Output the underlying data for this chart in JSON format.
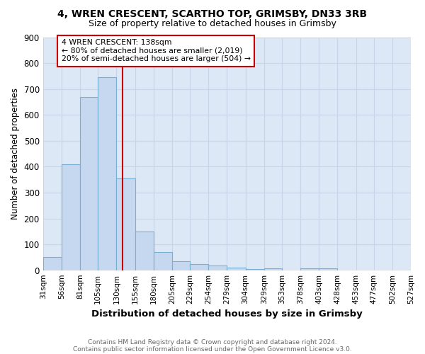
{
  "title1": "4, WREN CRESCENT, SCARTHO TOP, GRIMSBY, DN33 3RB",
  "title2": "Size of property relative to detached houses in Grimsby",
  "xlabel": "Distribution of detached houses by size in Grimsby",
  "ylabel": "Number of detached properties",
  "footer1": "Contains HM Land Registry data © Crown copyright and database right 2024.",
  "footer2": "Contains public sector information licensed under the Open Government Licence v3.0.",
  "bin_edges": [
    31,
    56,
    81,
    105,
    130,
    155,
    180,
    205,
    229,
    254,
    279,
    304,
    329,
    353,
    378,
    403,
    428,
    453,
    477,
    502,
    527
  ],
  "bar_heights": [
    50,
    410,
    670,
    745,
    355,
    150,
    70,
    35,
    25,
    18,
    10,
    5,
    7,
    0,
    8,
    7,
    0,
    0,
    0,
    0
  ],
  "bar_color": "#c5d8f0",
  "bar_edge_color": "#7aafd4",
  "vline_x": 138,
  "vline_color": "#cc0000",
  "annotation_line1": "4 WREN CRESCENT: 138sqm",
  "annotation_line2": "← 80% of detached houses are smaller (2,019)",
  "annotation_line3": "20% of semi-detached houses are larger (504) →",
  "annotation_box_color": "#cc0000",
  "annotation_bg": "#ffffff",
  "ylim": [
    0,
    900
  ],
  "yticks": [
    0,
    100,
    200,
    300,
    400,
    500,
    600,
    700,
    800,
    900
  ],
  "grid_color": "#c8d4e8",
  "bg_color": "#ffffff",
  "ax_bg_color": "#dce8f5"
}
